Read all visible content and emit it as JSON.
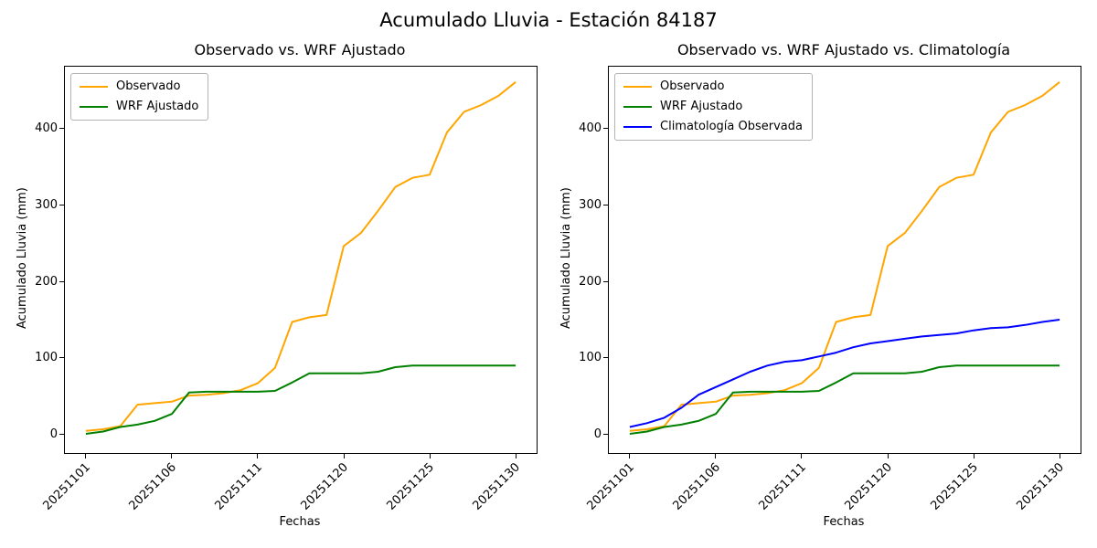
{
  "suptitle": "Acumulado Lluvia - Estación 84187",
  "colors": {
    "observado": "#FFA500",
    "wrf_ajustado": "#008000",
    "climatologia_observada": "#0000FF",
    "axis": "#000000",
    "legend_border": "#b3b3b3"
  },
  "chart_data": [
    {
      "type": "line",
      "title": "Observado vs. WRF Ajustado",
      "xlabel": "Fechas",
      "ylabel": "Acumulado Lluvia (mm)",
      "x": [
        "20251101",
        "20251102",
        "20251103",
        "20251104",
        "20251105",
        "20251106",
        "20251107",
        "20251108",
        "20251109",
        "20251110",
        "20251111",
        "20251116",
        "20251117",
        "20251118",
        "20251119",
        "20251120",
        "20251121",
        "20251122",
        "20251123",
        "20251124",
        "20251125",
        "20251126",
        "20251127",
        "20251128",
        "20251129",
        "20251130"
      ],
      "series": [
        {
          "name": "Observado",
          "color": "#FFA500",
          "values": [
            5,
            7,
            11,
            39,
            41,
            43,
            51,
            52,
            54,
            58,
            67,
            87,
            147,
            153,
            156,
            246,
            263,
            292,
            323,
            335,
            339,
            394,
            421,
            430,
            442,
            460
          ]
        },
        {
          "name": "WRF Ajustado",
          "color": "#008000",
          "values": [
            1,
            4,
            10,
            13,
            18,
            27,
            55,
            56,
            56,
            56,
            56,
            57,
            68,
            80,
            80,
            80,
            80,
            82,
            88,
            90,
            90,
            90,
            90,
            90,
            90,
            90
          ]
        }
      ],
      "xtick_positions": [
        0,
        5,
        10,
        15,
        20,
        25
      ],
      "xtick_labels": [
        "20251101",
        "20251106",
        "20251111",
        "20251120",
        "20251125",
        "20251130"
      ],
      "yticks": [
        0,
        100,
        200,
        300,
        400
      ],
      "ylim": [
        -24,
        480
      ],
      "xlim": [
        -1.22,
        26.22
      ],
      "grid": false,
      "legend_position": "upper left"
    },
    {
      "type": "line",
      "title": "Observado vs. WRF Ajustado vs. Climatología",
      "xlabel": "Fechas",
      "ylabel": "Acumulado Lluvia (mm)",
      "x": [
        "20251101",
        "20251102",
        "20251103",
        "20251104",
        "20251105",
        "20251106",
        "20251107",
        "20251108",
        "20251109",
        "20251110",
        "20251111",
        "20251116",
        "20251117",
        "20251118",
        "20251119",
        "20251120",
        "20251121",
        "20251122",
        "20251123",
        "20251124",
        "20251125",
        "20251126",
        "20251127",
        "20251128",
        "20251129",
        "20251130"
      ],
      "series": [
        {
          "name": "Observado",
          "color": "#FFA500",
          "values": [
            5,
            7,
            11,
            39,
            41,
            43,
            51,
            52,
            54,
            58,
            67,
            87,
            147,
            153,
            156,
            246,
            263,
            292,
            323,
            335,
            339,
            394,
            421,
            430,
            442,
            460
          ]
        },
        {
          "name": "WRF Ajustado",
          "color": "#008000",
          "values": [
            1,
            4,
            10,
            13,
            18,
            27,
            55,
            56,
            56,
            56,
            56,
            57,
            68,
            80,
            80,
            80,
            80,
            82,
            88,
            90,
            90,
            90,
            90,
            90,
            90,
            90
          ]
        },
        {
          "name": "Climatología Observada",
          "color": "#0000FF",
          "values": [
            10,
            15,
            22,
            35,
            52,
            62,
            72,
            82,
            90,
            95,
            97,
            102,
            107,
            114,
            119,
            122,
            125,
            128,
            130,
            132,
            136,
            139,
            140,
            143,
            147,
            150
          ]
        }
      ],
      "xtick_positions": [
        0,
        5,
        10,
        15,
        20,
        25
      ],
      "xtick_labels": [
        "20251101",
        "20251106",
        "20251111",
        "20251120",
        "20251125",
        "20251130"
      ],
      "yticks": [
        0,
        100,
        200,
        300,
        400
      ],
      "ylim": [
        -24,
        480
      ],
      "xlim": [
        -1.22,
        26.22
      ],
      "grid": false,
      "legend_position": "upper left"
    }
  ]
}
